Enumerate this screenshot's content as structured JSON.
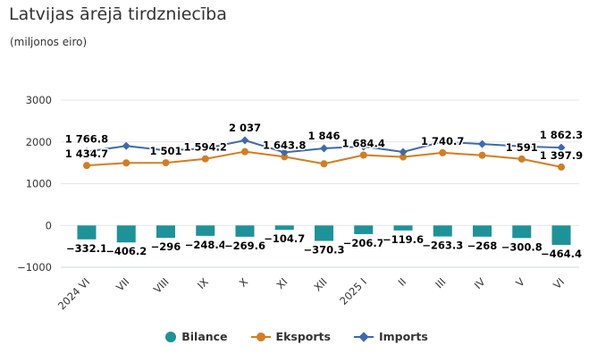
{
  "header": {
    "title": "Latvijas ārējā tirdzniecība",
    "subtitle": "(miljonos eiro)"
  },
  "colors": {
    "bilance": "#1d9399",
    "eksports": "#d37d22",
    "imports": "#3d6aab"
  },
  "chart_data": {
    "type": "bar",
    "title": "Latvijas ārējā tirdzniecība",
    "subtitle": "(miljonos eiro)",
    "categories": [
      "2024 VI",
      "VII",
      "VIII",
      "IX",
      "X",
      "XI",
      "XII",
      "2025 I",
      "II",
      "III",
      "IV",
      "V",
      "VI"
    ],
    "ylim": [
      -1000,
      3000
    ],
    "yticks": [
      -1000,
      0,
      1000,
      2000,
      3000
    ],
    "ytick_labels": [
      "−1000",
      "0",
      "1000",
      "2000",
      "3000"
    ],
    "grid": true,
    "legend_position": "bottom-center",
    "series": [
      {
        "name": "Bilance",
        "type": "bar",
        "values": [
          -332.1,
          -406.2,
          -296,
          -248.4,
          -269.6,
          -104.7,
          -370.3,
          -206.7,
          -119.6,
          -263.3,
          -268,
          -300.8,
          -464.4
        ],
        "labels": [
          "−332.1",
          "−406.2",
          "−296",
          "−248.4",
          "−269.6",
          "−104.7",
          "−370.3",
          "−206.7",
          "−119.6",
          "−263.3",
          "−268",
          "−300.8",
          "−464.4"
        ]
      },
      {
        "name": "Eksports",
        "type": "line",
        "values": [
          1434.7,
          1497,
          1501,
          1594.2,
          1767,
          1643.8,
          1476,
          1684.4,
          1640,
          1740.7,
          1680,
          1591,
          1397.9
        ],
        "labels": [
          "1 434.7",
          "",
          "1 501",
          "1 594.2",
          "",
          "1 643.8",
          "",
          "1 684.4",
          "",
          "1 740.7",
          "",
          "1 591",
          "1 397.9"
        ]
      },
      {
        "name": "Imports",
        "type": "line",
        "values": [
          1766.8,
          1903,
          1797,
          1842.6,
          2037,
          1748.5,
          1846,
          1891.1,
          1759.6,
          2004,
          1948,
          1891.8,
          1862.3
        ],
        "labels": [
          "1 766.8",
          "",
          "",
          "",
          "2 037",
          "",
          "1 846",
          "",
          "",
          "",
          "",
          "",
          "1 862.3"
        ]
      }
    ]
  }
}
